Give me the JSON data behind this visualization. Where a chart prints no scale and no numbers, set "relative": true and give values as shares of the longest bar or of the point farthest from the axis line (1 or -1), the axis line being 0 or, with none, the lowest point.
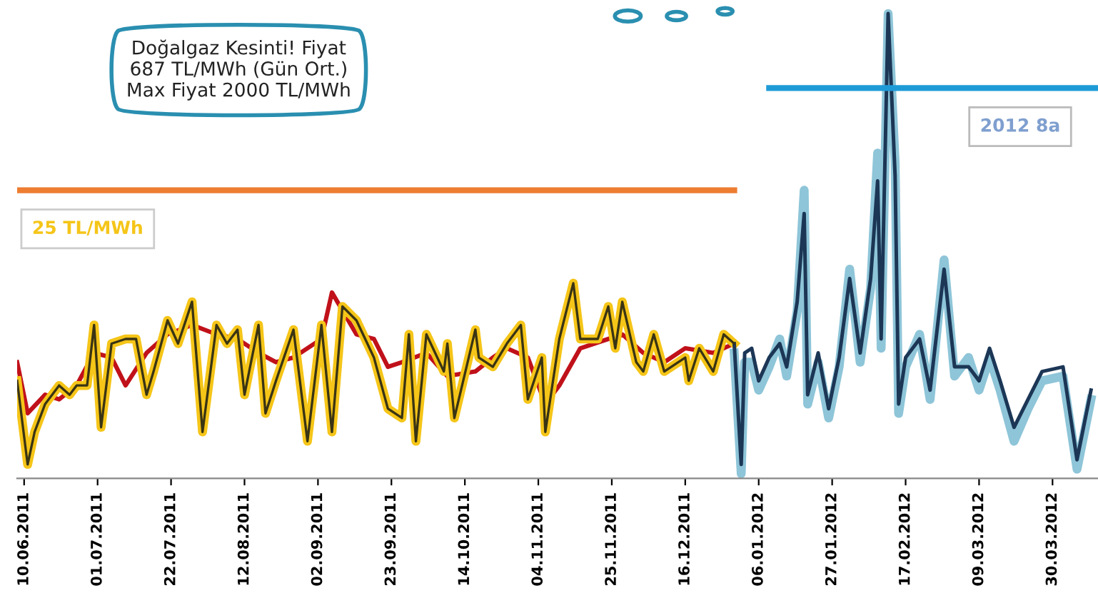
{
  "chart_data": {
    "type": "line",
    "relative": true,
    "tick_labels": "x",
    "xlim": [
      "2011-06-08",
      "2012-04-12"
    ],
    "xticks": [
      {
        "value": "2011-06-10",
        "label": "10.06.2011"
      },
      {
        "value": "2011-07-01",
        "label": "01.07.2011"
      },
      {
        "value": "2011-07-22",
        "label": "22.07.2011"
      },
      {
        "value": "2011-08-12",
        "label": "12.08.2011"
      },
      {
        "value": "2011-09-02",
        "label": "02.09.2011"
      },
      {
        "value": "2011-09-23",
        "label": "23.09.2011"
      },
      {
        "value": "2011-10-14",
        "label": "14.10.2011"
      },
      {
        "value": "2011-11-04",
        "label": "04.11.2011"
      },
      {
        "value": "2011-11-25",
        "label": "25.11.2011"
      },
      {
        "value": "2011-12-16",
        "label": "16.12.2011"
      },
      {
        "value": "2012-01-06",
        "label": "06.01.2012"
      },
      {
        "value": "2012-01-27",
        "label": "27.01.2012"
      },
      {
        "value": "2012-02-17",
        "label": "17.02.2012"
      },
      {
        "value": "2012-03-09",
        "label": "09.03.2012"
      },
      {
        "value": "2012-03-30",
        "label": "30.03.2012"
      }
    ],
    "series": [
      {
        "color": "#c0111a",
        "x": [
          "2011-06-08",
          "2011-06-11",
          "2011-06-16",
          "2011-06-20",
          "2011-06-25",
          "2011-06-30",
          "2011-07-05",
          "2011-07-09",
          "2011-07-15",
          "2011-07-21",
          "2011-07-28",
          "2011-08-04",
          "2011-08-10",
          "2011-08-16",
          "2011-08-21",
          "2011-08-26",
          "2011-09-03",
          "2011-09-06",
          "2011-09-13",
          "2011-09-18",
          "2011-09-22",
          "2011-09-26",
          "2011-10-03",
          "2011-10-09",
          "2011-10-17",
          "2011-10-22",
          "2011-10-26",
          "2011-11-01",
          "2011-11-06",
          "2011-11-10",
          "2011-11-16",
          "2011-11-24",
          "2011-11-28",
          "2011-12-04",
          "2011-12-10",
          "2011-12-16",
          "2011-12-24",
          "2011-12-30"
        ],
        "values": [
          0.25,
          0.14,
          0.18,
          0.17,
          0.2,
          0.27,
          0.26,
          0.2,
          0.27,
          0.31,
          0.33,
          0.31,
          0.3,
          0.27,
          0.25,
          0.26,
          0.3,
          0.4,
          0.31,
          0.3,
          0.24,
          0.25,
          0.27,
          0.22,
          0.23,
          0.26,
          0.28,
          0.26,
          0.16,
          0.2,
          0.28,
          0.3,
          0.31,
          0.27,
          0.25,
          0.28,
          0.27,
          0.29
        ]
      },
      {
        "color": "#f5c518",
        "x": [
          "2011-06-08",
          "2011-06-11",
          "2011-06-13",
          "2011-06-16",
          "2011-06-20",
          "2011-06-23",
          "2011-06-25",
          "2011-06-28",
          "2011-06-30",
          "2011-07-02",
          "2011-07-05",
          "2011-07-09",
          "2011-07-12",
          "2011-07-15",
          "2011-07-17",
          "2011-07-21",
          "2011-07-24",
          "2011-07-28",
          "2011-07-31",
          "2011-08-04",
          "2011-08-07",
          "2011-08-10",
          "2011-08-12",
          "2011-08-16",
          "2011-08-18",
          "2011-08-21",
          "2011-08-26",
          "2011-08-30",
          "2011-09-03",
          "2011-09-06",
          "2011-09-09",
          "2011-09-13",
          "2011-09-18",
          "2011-09-22",
          "2011-09-26",
          "2011-09-28",
          "2011-09-30",
          "2011-10-03",
          "2011-10-08",
          "2011-10-09",
          "2011-10-11",
          "2011-10-17",
          "2011-10-18",
          "2011-10-22",
          "2011-10-26",
          "2011-10-30",
          "2011-11-01",
          "2011-11-05",
          "2011-11-06",
          "2011-11-10",
          "2011-11-14",
          "2011-11-16",
          "2011-11-21",
          "2011-11-24",
          "2011-11-26",
          "2011-11-28",
          "2011-12-02",
          "2011-12-04",
          "2011-12-07",
          "2011-12-10",
          "2011-12-16",
          "2011-12-17",
          "2011-12-20",
          "2011-12-24",
          "2011-12-27",
          "2011-12-30"
        ],
        "values": [
          0.21,
          0.03,
          0.1,
          0.16,
          0.2,
          0.18,
          0.2,
          0.2,
          0.33,
          0.11,
          0.29,
          0.3,
          0.3,
          0.18,
          0.23,
          0.34,
          0.29,
          0.38,
          0.1,
          0.33,
          0.29,
          0.32,
          0.18,
          0.33,
          0.14,
          0.21,
          0.32,
          0.08,
          0.33,
          0.1,
          0.37,
          0.34,
          0.26,
          0.15,
          0.13,
          0.31,
          0.08,
          0.31,
          0.23,
          0.29,
          0.13,
          0.32,
          0.26,
          0.24,
          0.29,
          0.33,
          0.17,
          0.26,
          0.1,
          0.3,
          0.42,
          0.3,
          0.3,
          0.37,
          0.28,
          0.38,
          0.25,
          0.23,
          0.31,
          0.23,
          0.26,
          0.21,
          0.28,
          0.23,
          0.31,
          0.29
        ]
      },
      {
        "color": "#8ec5d8",
        "x": [
          "2011-12-30",
          "2012-01-01",
          "2012-01-02",
          "2012-01-04",
          "2012-01-06",
          "2012-01-09",
          "2012-01-12",
          "2012-01-14",
          "2012-01-17",
          "2012-01-19",
          "2012-01-20",
          "2012-01-23",
          "2012-01-26",
          "2012-01-29",
          "2012-02-01",
          "2012-02-04",
          "2012-02-07",
          "2012-02-09",
          "2012-02-10",
          "2012-02-12",
          "2012-02-14",
          "2012-02-15",
          "2012-02-17",
          "2012-02-21",
          "2012-02-24",
          "2012-02-28",
          "2012-03-02",
          "2012-03-06",
          "2012-03-09",
          "2012-03-12",
          "2012-03-15",
          "2012-03-19",
          "2012-03-23",
          "2012-03-27",
          "2012-04-02",
          "2012-04-06",
          "2012-04-10"
        ],
        "values": [
          0.27,
          0.01,
          0.25,
          0.25,
          0.19,
          0.24,
          0.3,
          0.22,
          0.36,
          0.62,
          0.16,
          0.25,
          0.13,
          0.24,
          0.45,
          0.25,
          0.41,
          0.7,
          0.28,
          1.0,
          0.68,
          0.14,
          0.24,
          0.31,
          0.17,
          0.47,
          0.22,
          0.26,
          0.19,
          0.26,
          0.19,
          0.08,
          0.15,
          0.21,
          0.22,
          0.02,
          0.17
        ]
      },
      {
        "color": "#1c3656",
        "x": [
          "2011-12-30",
          "2012-01-01",
          "2012-01-02",
          "2012-01-04",
          "2012-01-06",
          "2012-01-09",
          "2012-01-12",
          "2012-01-14",
          "2012-01-17",
          "2012-01-19",
          "2012-01-20",
          "2012-01-23",
          "2012-01-26",
          "2012-01-29",
          "2012-02-01",
          "2012-02-04",
          "2012-02-07",
          "2012-02-09",
          "2012-02-10",
          "2012-02-12",
          "2012-02-14",
          "2012-02-15",
          "2012-02-17",
          "2012-02-21",
          "2012-02-24",
          "2012-02-28",
          "2012-03-02",
          "2012-03-06",
          "2012-03-09",
          "2012-03-12",
          "2012-03-15",
          "2012-03-19",
          "2012-03-23",
          "2012-03-27",
          "2012-04-02",
          "2012-04-06",
          "2012-04-10"
        ],
        "values": [
          0.29,
          0.03,
          0.27,
          0.28,
          0.21,
          0.26,
          0.29,
          0.24,
          0.38,
          0.57,
          0.18,
          0.27,
          0.15,
          0.26,
          0.43,
          0.27,
          0.43,
          0.64,
          0.3,
          1.0,
          0.65,
          0.16,
          0.26,
          0.3,
          0.19,
          0.45,
          0.24,
          0.24,
          0.21,
          0.28,
          0.21,
          0.11,
          0.17,
          0.23,
          0.24,
          0.04,
          0.19
        ]
      },
      {
        "color": "#ed7d31",
        "x": [
          "2011-06-08",
          "2011-12-30"
        ],
        "values": [
          0.62,
          0.62
        ]
      },
      {
        "color": "#1e9bd7",
        "x": [
          "2012-01-09",
          "2012-04-12"
        ],
        "values": [
          0.84,
          0.84
        ]
      }
    ],
    "annotations": [
      "Doğalgaz Kesinti! Fiyat\n687 TL/MWh (Gün Ort.)\nMax Fiyat 2000 TL/MWh",
      {
        "text": "25 TL/MWh",
        "x": "2011-06-10",
        "y": 0.62
      },
      {
        "text": "2012 8a",
        "x": "2012-03-07",
        "y": 0.84
      }
    ]
  }
}
